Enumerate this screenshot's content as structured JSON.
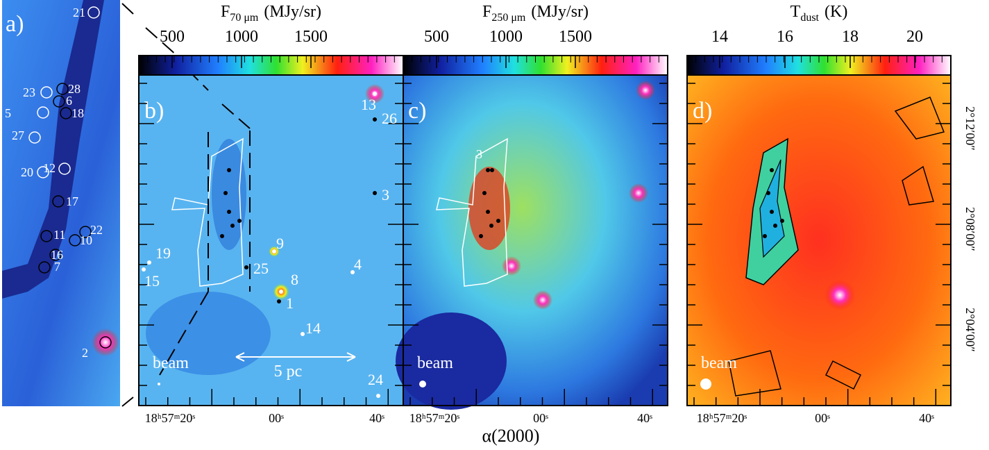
{
  "panels": {
    "a": {
      "label": "a)",
      "sources": [
        "21",
        "28",
        "23",
        "6",
        "5",
        "18",
        "27",
        "20",
        "12",
        "17",
        "11",
        "22",
        "10",
        "16",
        "7",
        "2"
      ]
    },
    "b": {
      "label": "b)",
      "colorbar": {
        "quantity": "F",
        "subscript": "70 μm",
        "unit": "(MJy/sr)",
        "ticks": [
          500,
          1000,
          1500
        ]
      },
      "sources": [
        "13",
        "26",
        "3",
        "9",
        "19",
        "15",
        "25",
        "8",
        "1",
        "4",
        "14",
        "24"
      ],
      "beam": "beam",
      "scale_bar": "5 pc",
      "ra_ticks": [
        "18ʰ57ᵐ20ˢ",
        "00ˢ",
        "40ˢ"
      ]
    },
    "c": {
      "label": "c)",
      "colorbar": {
        "quantity": "F",
        "subscript": "250 μm",
        "unit": "(MJy/sr)",
        "ticks": [
          500,
          1000,
          1500
        ]
      },
      "sources": [
        "3"
      ],
      "beam": "beam",
      "ra_ticks": [
        "18ʰ57ᵐ20ˢ",
        "00ˢ",
        "40ˢ"
      ]
    },
    "d": {
      "label": "d)",
      "colorbar": {
        "quantity": "T",
        "subscript": "dust",
        "unit": "(K)",
        "ticks": [
          14,
          16,
          18,
          20
        ]
      },
      "beam": "beam",
      "ra_ticks": [
        "18ʰ57ᵐ20ˢ",
        "00ˢ",
        "40ˢ"
      ],
      "dec_ticks": [
        "2°12′00″",
        "2°08′00″",
        "2°04′00″"
      ]
    }
  },
  "x_axis_title": "α(2000)"
}
